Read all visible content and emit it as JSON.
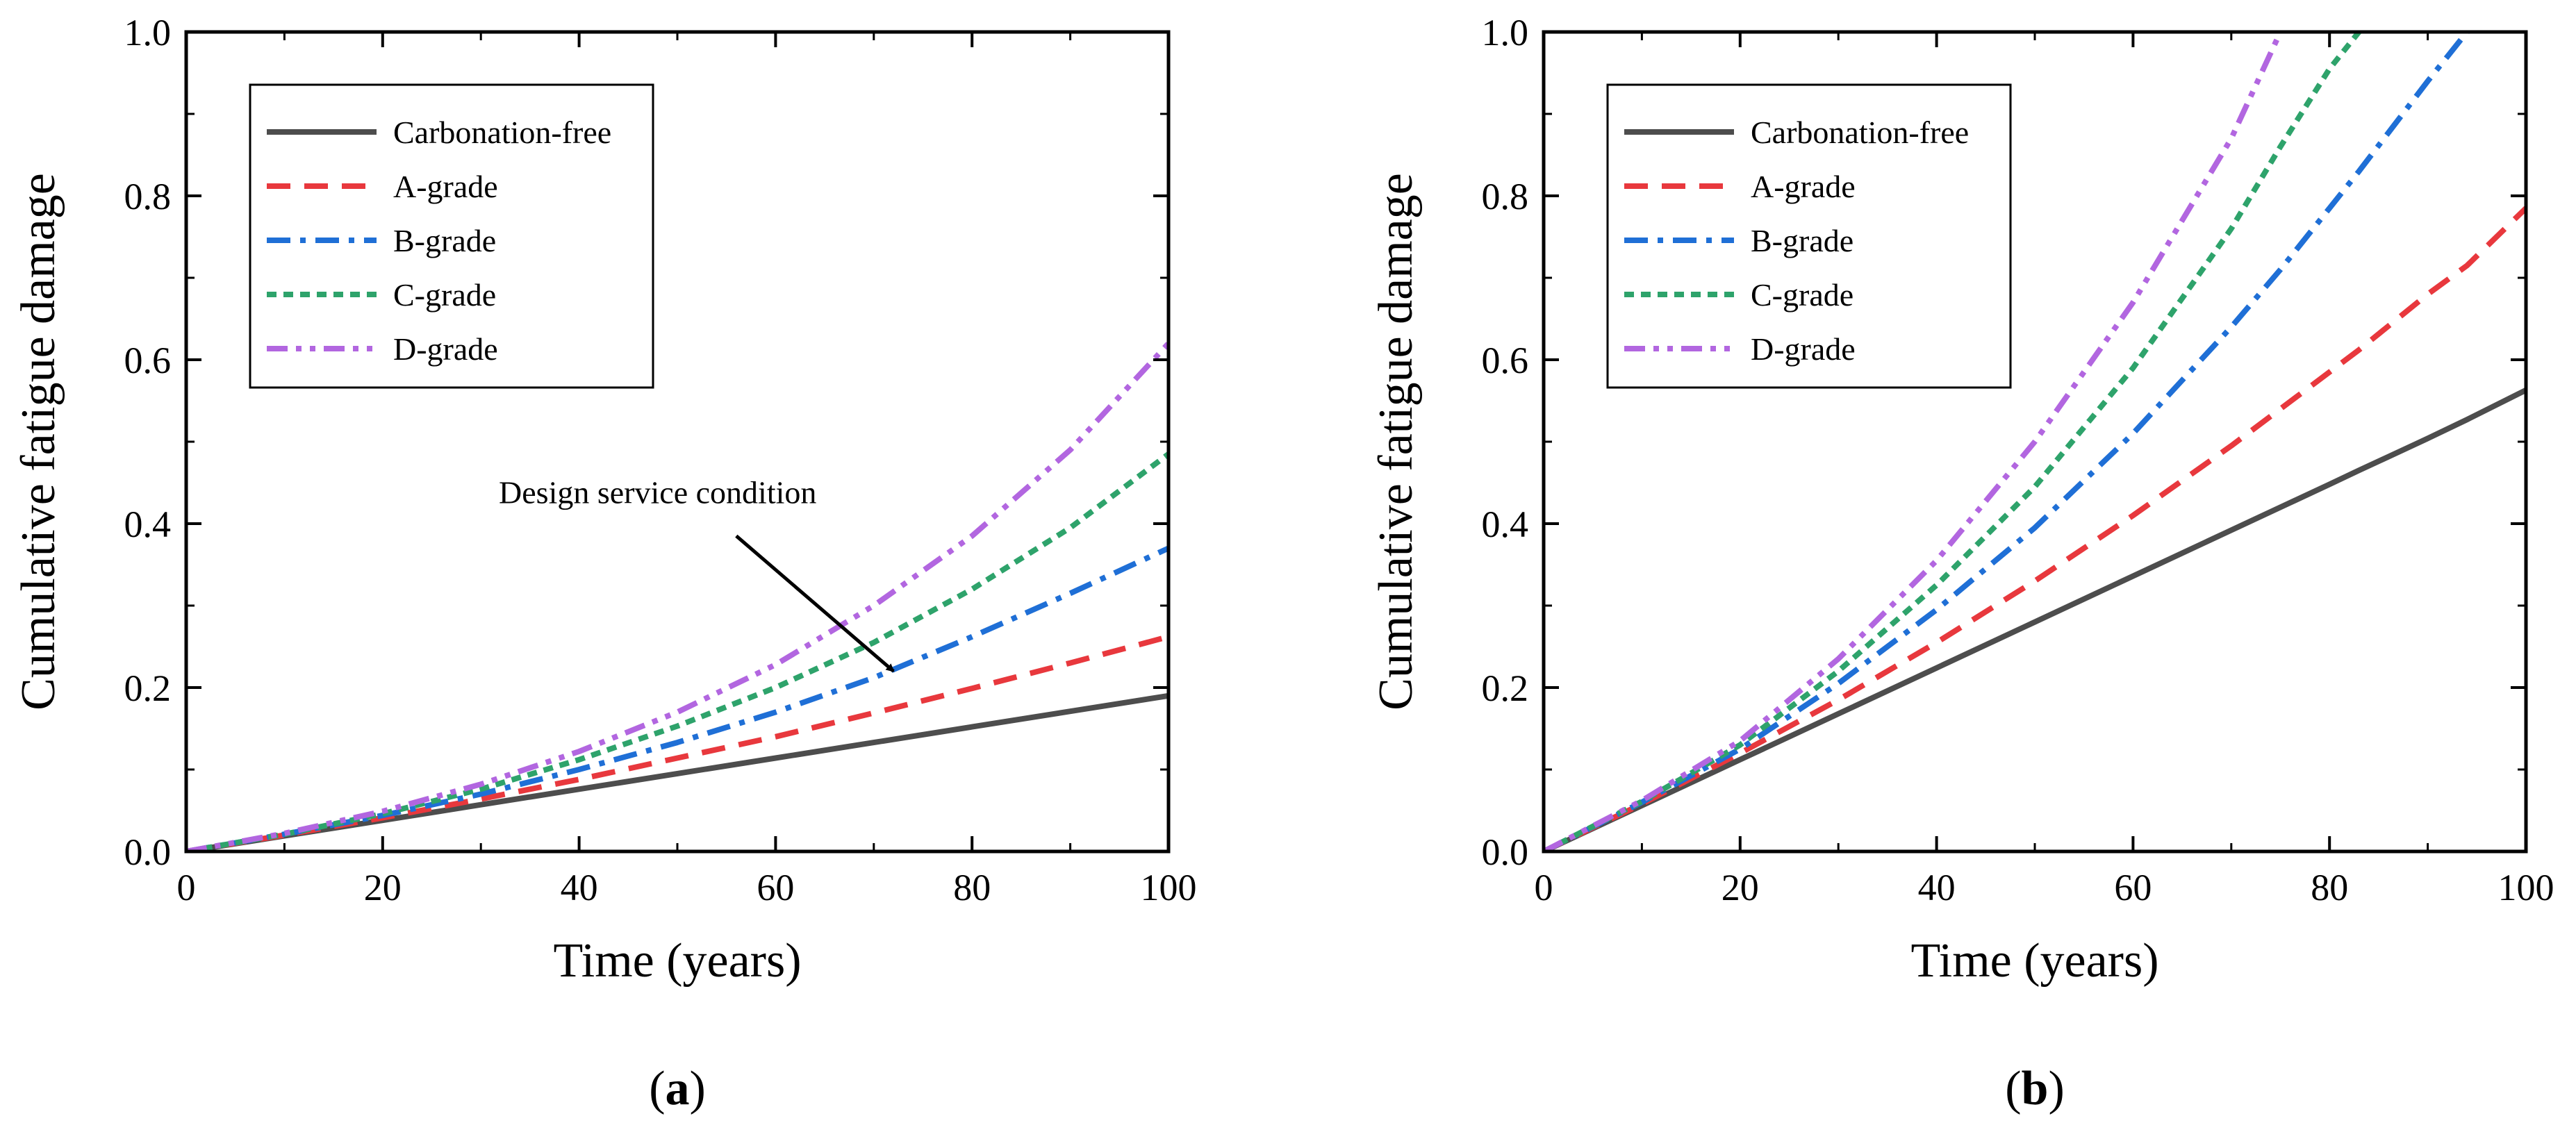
{
  "chart_data": [
    {
      "type": "line",
      "panel_label": "a",
      "xlabel": "Time (years)",
      "ylabel": "Cumulative fatigue damage",
      "xlim": [
        0,
        100
      ],
      "ylim": [
        0,
        1.0
      ],
      "xticks": [
        "0",
        "20",
        "40",
        "60",
        "80",
        "100"
      ],
      "yticks": [
        "0.0",
        "0.2",
        "0.4",
        "0.6",
        "0.8",
        "1.0"
      ],
      "legend_position": "top-left",
      "annotation": {
        "text": "Design service condition",
        "points_to": {
          "x": 72,
          "y": 0.22
        }
      },
      "x": [
        0,
        10,
        20,
        30,
        40,
        50,
        60,
        70,
        80,
        90,
        100
      ],
      "series": [
        {
          "name": "Carbonation-free",
          "color": "#4d4d4d",
          "dash": "solid",
          "values": [
            0,
            0.019,
            0.038,
            0.057,
            0.076,
            0.095,
            0.114,
            0.133,
            0.152,
            0.171,
            0.19
          ]
        },
        {
          "name": "A-grade",
          "color": "#e8383d",
          "dash": "dashed",
          "values": [
            0,
            0.02,
            0.041,
            0.064,
            0.088,
            0.114,
            0.14,
            0.169,
            0.199,
            0.23,
            0.262
          ]
        },
        {
          "name": "B-grade",
          "color": "#1f6fd6",
          "dash": "dashdot",
          "values": [
            0,
            0.021,
            0.044,
            0.07,
            0.1,
            0.133,
            0.17,
            0.212,
            0.262,
            0.315,
            0.37
          ]
        },
        {
          "name": "C-grade",
          "color": "#2ea36b",
          "dash": "dotted",
          "values": [
            0,
            0.021,
            0.046,
            0.076,
            0.112,
            0.153,
            0.2,
            0.255,
            0.32,
            0.395,
            0.485
          ]
        },
        {
          "name": "D-grade",
          "color": "#b266e0",
          "dash": "dashdotdot",
          "values": [
            0,
            0.022,
            0.049,
            0.082,
            0.122,
            0.17,
            0.228,
            0.3,
            0.385,
            0.49,
            0.62
          ]
        }
      ]
    },
    {
      "type": "line",
      "panel_label": "b",
      "xlabel": "Time (years)",
      "ylabel": "Cumulative fatigue damage",
      "xlim": [
        0,
        100
      ],
      "ylim": [
        0,
        1.0
      ],
      "xticks": [
        "0",
        "20",
        "40",
        "60",
        "80",
        "100"
      ],
      "yticks": [
        "0.0",
        "0.2",
        "0.4",
        "0.6",
        "0.8",
        "1.0"
      ],
      "legend_position": "top-left",
      "x": [
        0,
        10,
        20,
        30,
        40,
        50,
        60,
        70,
        75,
        80,
        83,
        90,
        94,
        100
      ],
      "series": [
        {
          "name": "Carbonation-free",
          "color": "#4d4d4d",
          "dash": "solid",
          "values": [
            0,
            0.056,
            0.112,
            0.168,
            0.224,
            0.28,
            0.336,
            0.392,
            0.42,
            0.448,
            0.465,
            0.504,
            0.527,
            0.563
          ]
        },
        {
          "name": "A-grade",
          "color": "#e8383d",
          "dash": "dashed",
          "values": [
            0,
            0.058,
            0.12,
            0.185,
            0.255,
            0.33,
            0.41,
            0.495,
            0.54,
            0.585,
            0.612,
            0.68,
            0.715,
            0.785
          ]
        },
        {
          "name": "B-grade",
          "color": "#1f6fd6",
          "dash": "dashdot",
          "values": [
            0,
            0.06,
            0.125,
            0.205,
            0.295,
            0.395,
            0.51,
            0.64,
            0.71,
            0.785,
            0.83,
            0.94,
            1.0,
            null
          ]
        },
        {
          "name": "C-grade",
          "color": "#2ea36b",
          "dash": "dotted",
          "values": [
            0,
            0.061,
            0.13,
            0.22,
            0.325,
            0.445,
            0.59,
            0.76,
            0.86,
            0.955,
            1.0,
            null,
            null,
            null
          ]
        },
        {
          "name": "D-grade",
          "color": "#b266e0",
          "dash": "dashdotdot",
          "values": [
            0,
            0.062,
            0.135,
            0.235,
            0.355,
            0.5,
            0.67,
            0.87,
            1.0,
            null,
            null,
            null,
            null,
            null
          ]
        }
      ]
    }
  ]
}
